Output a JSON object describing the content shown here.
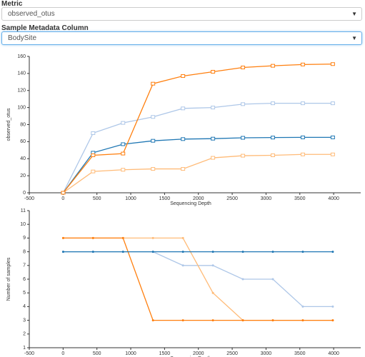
{
  "controls": {
    "metric_label": "Metric",
    "metric_value": "observed_otus",
    "column_label": "Sample Metadata Column",
    "column_value": "BodySite"
  },
  "chart_data": [
    {
      "type": "line",
      "marker": "box",
      "y_label": "observed_otus",
      "x_label": "Sequencing Depth",
      "x": [
        1,
        443,
        886,
        1329,
        1772,
        2215,
        2658,
        3101,
        3544,
        3987
      ],
      "xlim": [
        -500,
        4400
      ],
      "xticks": [
        -500,
        0,
        500,
        1000,
        1500,
        2000,
        2500,
        3000,
        3500,
        4000
      ],
      "ylim": [
        0,
        160
      ],
      "yticks": [
        0,
        20,
        40,
        60,
        80,
        100,
        120,
        140,
        160
      ],
      "series": [
        {
          "color": "#aec7e8",
          "values": [
            0,
            70,
            82,
            89,
            99,
            100,
            104,
            105,
            105,
            105
          ]
        },
        {
          "color": "#ffbb78",
          "values": [
            0,
            25,
            27,
            28,
            28,
            41,
            43.5,
            44,
            45,
            45
          ]
        },
        {
          "color": "#1f77b4",
          "values": [
            0,
            47,
            57,
            61,
            63,
            63.5,
            64.5,
            64.8,
            65,
            65
          ]
        },
        {
          "color": "#ff7f0e",
          "values": [
            0,
            44,
            46,
            128,
            137,
            142,
            147,
            149,
            150.5,
            151
          ]
        }
      ]
    },
    {
      "type": "line",
      "marker": "dot",
      "y_label": "Number of samples",
      "x_label": "Sequencing Depth",
      "x": [
        1,
        443,
        886,
        1329,
        1772,
        2215,
        2658,
        3101,
        3544,
        3987
      ],
      "xlim": [
        -500,
        4400
      ],
      "xticks": [
        -500,
        0,
        500,
        1000,
        1500,
        2000,
        2500,
        3000,
        3500,
        4000
      ],
      "ylim": [
        1,
        11
      ],
      "yticks": [
        1,
        2,
        3,
        4,
        5,
        6,
        7,
        8,
        9,
        10,
        11
      ],
      "series": [
        {
          "color": "#aec7e8",
          "values": [
            8,
            8,
            8,
            8,
            7,
            7,
            6,
            6,
            4,
            4
          ]
        },
        {
          "color": "#ffbb78",
          "values": [
            9,
            9,
            9,
            9,
            9,
            5,
            3,
            3,
            3,
            3
          ]
        },
        {
          "color": "#ff7f0e",
          "values": [
            9,
            9,
            9,
            3,
            3,
            3,
            3,
            3,
            3,
            3
          ]
        },
        {
          "color": "#1f77b4",
          "values": [
            8,
            8,
            8,
            8,
            8,
            8,
            8,
            8,
            8,
            8
          ]
        }
      ]
    }
  ]
}
